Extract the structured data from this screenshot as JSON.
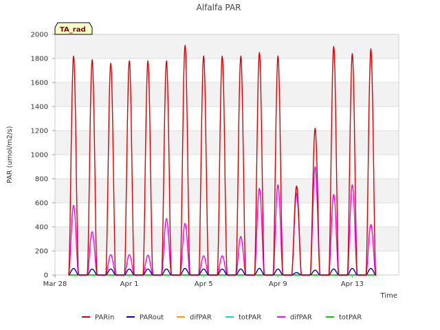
{
  "colors": {
    "band": "#f2f2f2",
    "grid": "#dddddd",
    "badge_fill": "#ffffcc",
    "PARin": "#dd0000",
    "PARout": "#0000cc",
    "difPAR_orange": "#ff9900",
    "totPAR_cyan": "#00dddd",
    "difPAR_magenta": "#ff00ff",
    "totPAR_green": "#00cc00"
  },
  "chart_data": {
    "type": "line",
    "title": "Alfalfa PAR",
    "xlabel": "Time",
    "ylabel": "PAR (umol/m2/s)",
    "badge": "TA_rad",
    "xlim": [
      0,
      18.5
    ],
    "ylim": [
      0,
      2000
    ],
    "yticks": [
      0,
      200,
      400,
      600,
      800,
      1000,
      1200,
      1400,
      1600,
      1800,
      2000
    ],
    "xticks": [
      {
        "value": 0,
        "label": "Mar 28"
      },
      {
        "value": 4,
        "label": "Apr 1"
      },
      {
        "value": 8,
        "label": "Apr 5"
      },
      {
        "value": 12,
        "label": "Apr 9"
      },
      {
        "value": 16,
        "label": "Apr 13"
      }
    ],
    "legend": [
      "PARin",
      "PARout",
      "difPAR",
      "totPAR",
      "difPAR",
      "totPAR"
    ],
    "day_start": 0.5,
    "series": [
      {
        "name": "PARin",
        "color_key": "PARin",
        "daily_peaks": [
          1820,
          1790,
          1760,
          1780,
          1780,
          1780,
          1910,
          1820,
          1820,
          1820,
          1850,
          1820,
          740,
          1220,
          1900,
          1840,
          1880
        ]
      },
      {
        "name": "PARout",
        "color_key": "PARout",
        "daily_peaks": [
          55,
          50,
          50,
          50,
          50,
          50,
          55,
          50,
          50,
          50,
          55,
          50,
          20,
          40,
          50,
          55,
          55
        ]
      },
      {
        "name": "difPAR",
        "color_key": "difPAR_orange",
        "daily_peaks": [
          0,
          0,
          0,
          0,
          0,
          0,
          0,
          0,
          0,
          0,
          0,
          0,
          0,
          0,
          0,
          0,
          0
        ]
      },
      {
        "name": "totPAR",
        "color_key": "totPAR_cyan",
        "daily_peaks": [
          0,
          0,
          0,
          0,
          0,
          0,
          0,
          0,
          0,
          0,
          0,
          0,
          0,
          0,
          0,
          0,
          0
        ]
      },
      {
        "name": "difPAR",
        "color_key": "difPAR_magenta",
        "daily_peaks": [
          580,
          360,
          170,
          170,
          165,
          470,
          430,
          160,
          160,
          320,
          720,
          750,
          680,
          900,
          670,
          750,
          420
        ]
      },
      {
        "name": "totPAR",
        "color_key": "totPAR_green",
        "daily_peaks": [
          0,
          0,
          0,
          0,
          0,
          0,
          0,
          0,
          0,
          0,
          0,
          0,
          0,
          0,
          0,
          0,
          0
        ]
      }
    ]
  }
}
